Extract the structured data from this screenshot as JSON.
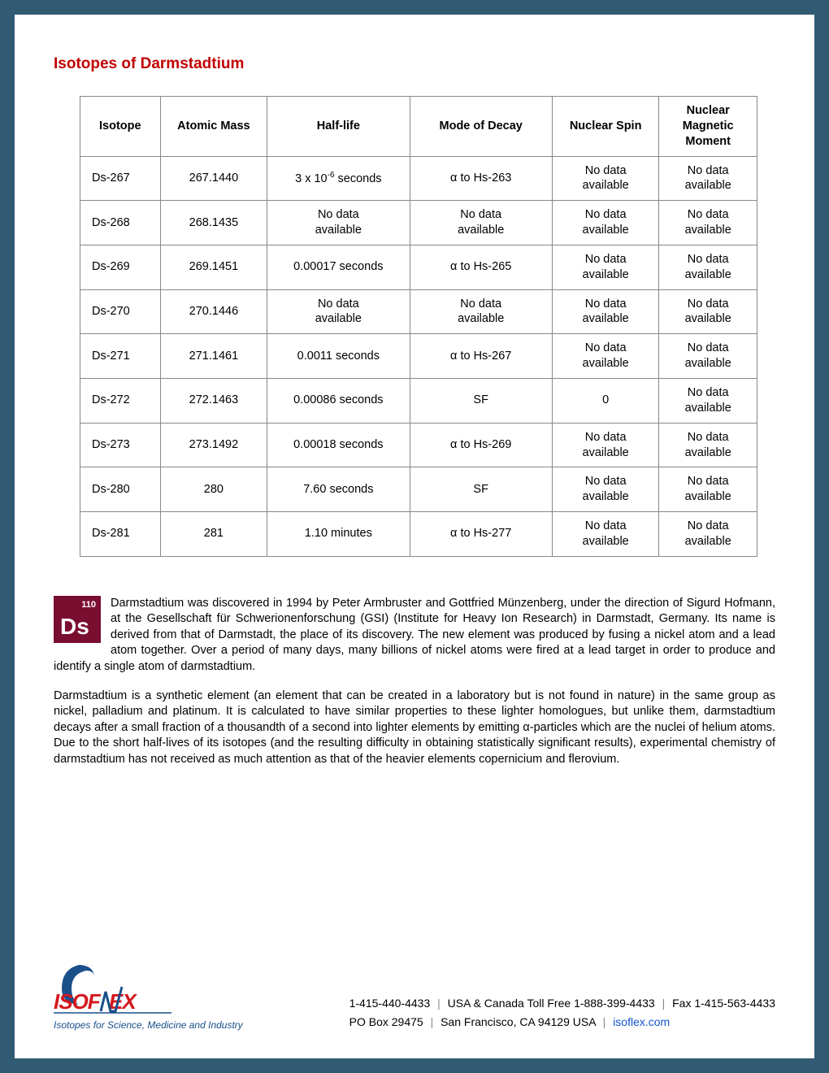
{
  "title": "Isotopes of Darmstadtium",
  "table": {
    "headers": [
      "Isotope",
      "Atomic Mass",
      "Half-life",
      "Mode of Decay",
      "Nuclear Spin",
      "Nuclear Magnetic Moment"
    ],
    "rows": [
      [
        "Ds-267",
        "267.1440",
        "3 x 10⁻⁶ seconds",
        "α to Hs-263",
        "No data available",
        "No data available"
      ],
      [
        "Ds-268",
        "268.1435",
        "No data available",
        "No data available",
        "No data available",
        "No data available"
      ],
      [
        "Ds-269",
        "269.1451",
        "0.00017 seconds",
        "α to Hs-265",
        "No data available",
        "No data available"
      ],
      [
        "Ds-270",
        "270.1446",
        "No data available",
        "No data available",
        "No data available",
        "No data available"
      ],
      [
        "Ds-271",
        "271.1461",
        "0.0011 seconds",
        "α to Hs-267",
        "No data available",
        "No data available"
      ],
      [
        "Ds-272",
        "272.1463",
        "0.00086 seconds",
        "SF",
        "0",
        "No data available"
      ],
      [
        "Ds-273",
        "273.1492",
        "0.00018 seconds",
        "α to Hs-269",
        "No data available",
        "No data available"
      ],
      [
        "Ds-280",
        "280",
        "7.60 seconds",
        "SF",
        "No data available",
        "No data available"
      ],
      [
        "Ds-281",
        "281",
        "1.10 minutes",
        "α to Hs-277",
        "No data available",
        "No data available"
      ]
    ]
  },
  "element": {
    "number": "110",
    "symbol": "Ds",
    "box_color": "#7a0e31"
  },
  "paragraphs": {
    "p1": "Darmstadtium was discovered in 1994 by Peter Armbruster and Gottfried Münzenberg, under the direction of Sigurd Hofmann, at the Gesellschaft für Schwerionenforschung (GSI) (Institute for Heavy Ion Research) in Darmstadt, Germany. Its name is derived from that of Darmstadt, the place of its discovery. The new element was produced by fusing a nickel atom and a lead atom together. Over a period of many days, many billions of nickel atoms were fired at a lead target in order to produce and identify a single atom of darmstadtium.",
    "p2": "Darmstadtium is a synthetic element (an element that can be created in a laboratory but is not found in nature) in the same group as nickel, palladium and platinum. It is calculated to have similar properties to these lighter homologues, but unlike them, darmstadtium decays after a small fraction of a thousandth of a second into lighter elements by emitting α-particles which are the nuclei of helium atoms. Due to the short half-lives of its isotopes (and the resulting difficulty in obtaining statistically significant results), experimental chemistry of darmstadtium has not received as much attention as that of the heavier elements copernicium and flerovium."
  },
  "footer": {
    "logo_name": "ISOFLEX",
    "tagline": "Isotopes for Science, Medicine and Industry",
    "phone": "1-415-440-4433",
    "tollfree_label": "USA & Canada Toll Free",
    "tollfree": "1-888-399-4433",
    "fax_label": "Fax",
    "fax": "1-415-563-4433",
    "address": "PO Box 29475",
    "city": "San Francisco, CA 94129  USA",
    "website": "isoflex.com",
    "logo_red": "#d4181f",
    "logo_blue": "#1a4f8a"
  }
}
